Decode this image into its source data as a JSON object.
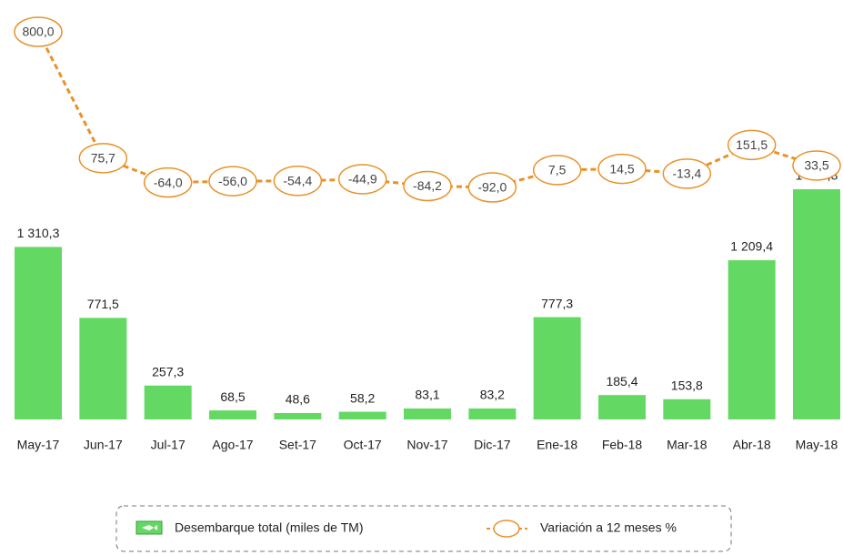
{
  "chart_data": {
    "type": "bar",
    "categories": [
      "May-17",
      "Jun-17",
      "Jul-17",
      "Ago-17",
      "Set-17",
      "Oct-17",
      "Nov-17",
      "Dic-17",
      "Ene-18",
      "Feb-18",
      "Mar-18",
      "Abr-18",
      "May-18"
    ],
    "series": [
      {
        "name": "Desembarque total (miles de TM)",
        "type": "bar",
        "color": "#63d963",
        "values": [
          1310.3,
          771.5,
          257.3,
          68.5,
          48.6,
          58.2,
          83.1,
          83.2,
          777.3,
          185.4,
          153.8,
          1209.4,
          1748.8
        ],
        "value_labels": [
          "1 310,3",
          "771,5",
          "257,3",
          "68,5",
          "48,6",
          "58,2",
          "83,1",
          "83,2",
          "777,3",
          "185,4",
          "153,8",
          "1 209,4",
          "1 748,8"
        ]
      },
      {
        "name": "Variación a 12 meses %",
        "type": "line",
        "axis": "y2",
        "color": "#e8922a",
        "values": [
          800.0,
          75.7,
          -64.0,
          -56.0,
          -54.4,
          -44.9,
          -84.2,
          -92.0,
          7.5,
          14.5,
          -13.4,
          151.5,
          33.5
        ],
        "value_labels": [
          "800,0",
          "75,7",
          "-64,0",
          "-56,0",
          "-54,4",
          "-44,9",
          "-84,2",
          "-92,0",
          "7,5",
          "14,5",
          "-13,4",
          "151,5",
          "33,5"
        ]
      }
    ]
  }
}
